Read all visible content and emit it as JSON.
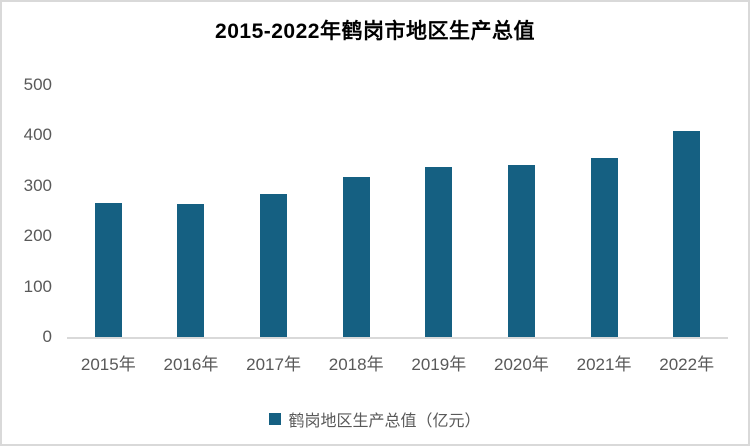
{
  "title": "2015-2022年鹤岗市地区生产总值",
  "legend": {
    "label": "鹤岗地区生产总值（亿元）"
  },
  "colors": {
    "bar": "#156082",
    "axis_line": "#d9d9d9",
    "tick_text": "#595959",
    "title_text": "#000000",
    "frame_border": "#d9d9d9",
    "background": "#ffffff"
  },
  "chart_data": {
    "type": "bar",
    "title": "2015-2022年鹤岗市地区生产总值",
    "categories": [
      "2015年",
      "2016年",
      "2017年",
      "2018年",
      "2019年",
      "2020年",
      "2021年",
      "2022年"
    ],
    "series": [
      {
        "name": "鹤岗地区生产总值（亿元）",
        "values": [
          266,
          263,
          284,
          317,
          337,
          341,
          355,
          409
        ]
      }
    ],
    "xlabel": "",
    "ylabel": "",
    "ylim": [
      0,
      500
    ],
    "yticks": [
      0,
      100,
      200,
      300,
      400,
      500
    ],
    "grid": false,
    "legend_position": "bottom",
    "data_labels": false
  }
}
